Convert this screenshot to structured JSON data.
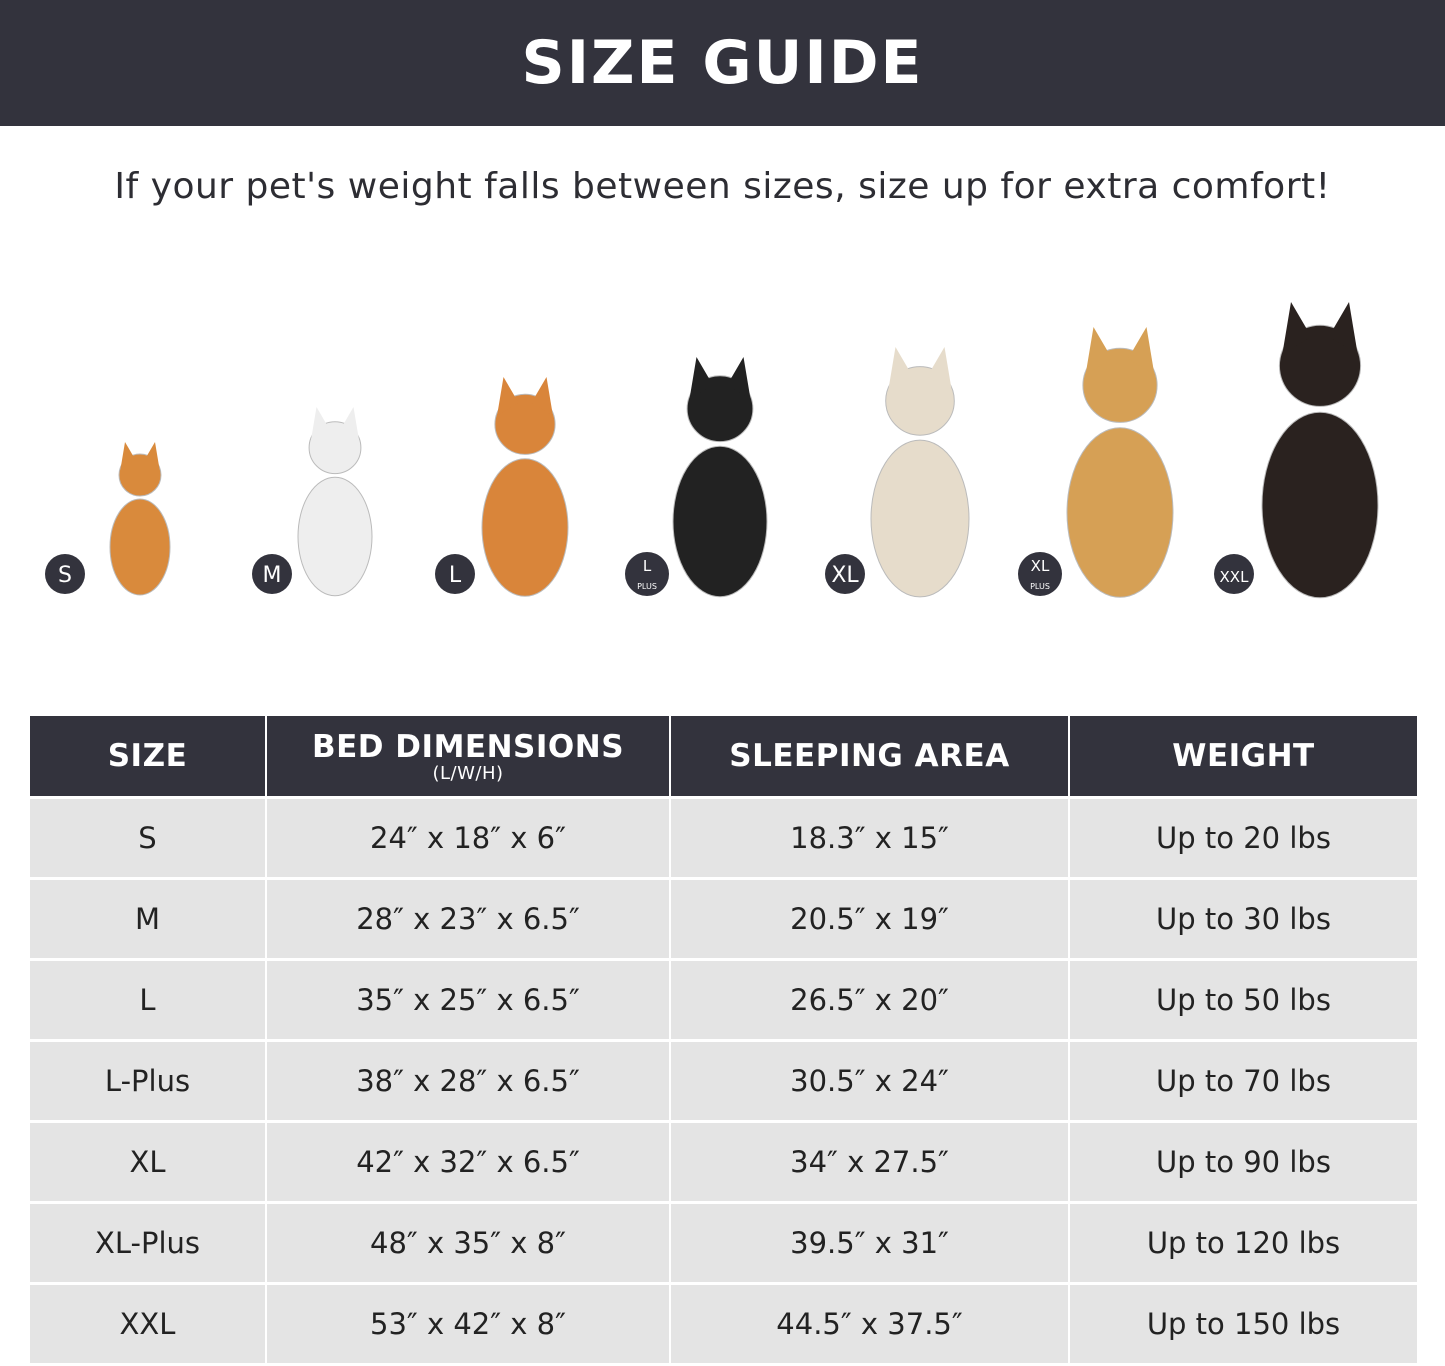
{
  "header": {
    "title": "SIZE GUIDE"
  },
  "subtitle": "If your pet's weight falls between sizes, size up for extra comfort!",
  "colors": {
    "dark": "#33333d",
    "row_bg": "#e4e4e4"
  },
  "dogs": [
    {
      "badge": "S",
      "badge_sub": "",
      "color": "#d98a3c"
    },
    {
      "badge": "M",
      "badge_sub": "",
      "color": "#eeeeee"
    },
    {
      "badge": "L",
      "badge_sub": "",
      "color": "#d9853a"
    },
    {
      "badge": "L",
      "badge_sub": "PLUS",
      "color": "#222222"
    },
    {
      "badge": "XL",
      "badge_sub": "",
      "color": "#e6dccb"
    },
    {
      "badge": "XL",
      "badge_sub": "PLUS",
      "color": "#d6a055"
    },
    {
      "badge": "XXL",
      "badge_sub": "",
      "color": "#2a221f"
    }
  ],
  "table": {
    "headers": [
      {
        "label": "SIZE",
        "sub": ""
      },
      {
        "label": "BED DIMENSIONS",
        "sub": "(L/W/H)"
      },
      {
        "label": "SLEEPING AREA",
        "sub": ""
      },
      {
        "label": "WEIGHT",
        "sub": ""
      }
    ],
    "rows": [
      [
        "S",
        "24″ x 18″ x 6″",
        "18.3″ x 15″",
        "Up to 20 lbs"
      ],
      [
        "M",
        "28″ x 23″ x 6.5″",
        "20.5″ x 19″",
        "Up to 30 lbs"
      ],
      [
        "L",
        "35″ x 25″ x 6.5″",
        "26.5″ x 20″",
        "Up to 50 lbs"
      ],
      [
        "L-Plus",
        "38″ x 28″ x 6.5″",
        "30.5″ x 24″",
        "Up to 70 lbs"
      ],
      [
        "XL",
        "42″ x 32″ x 6.5″",
        "34″ x 27.5″",
        "Up to 90 lbs"
      ],
      [
        "XL-Plus",
        "48″ x 35″ x 8″",
        "39.5″ x 31″",
        "Up to 120 lbs"
      ],
      [
        "XXL",
        "53″ x 42″ x 8″",
        "44.5″ x 37.5″",
        "Up to 150 lbs"
      ]
    ]
  }
}
